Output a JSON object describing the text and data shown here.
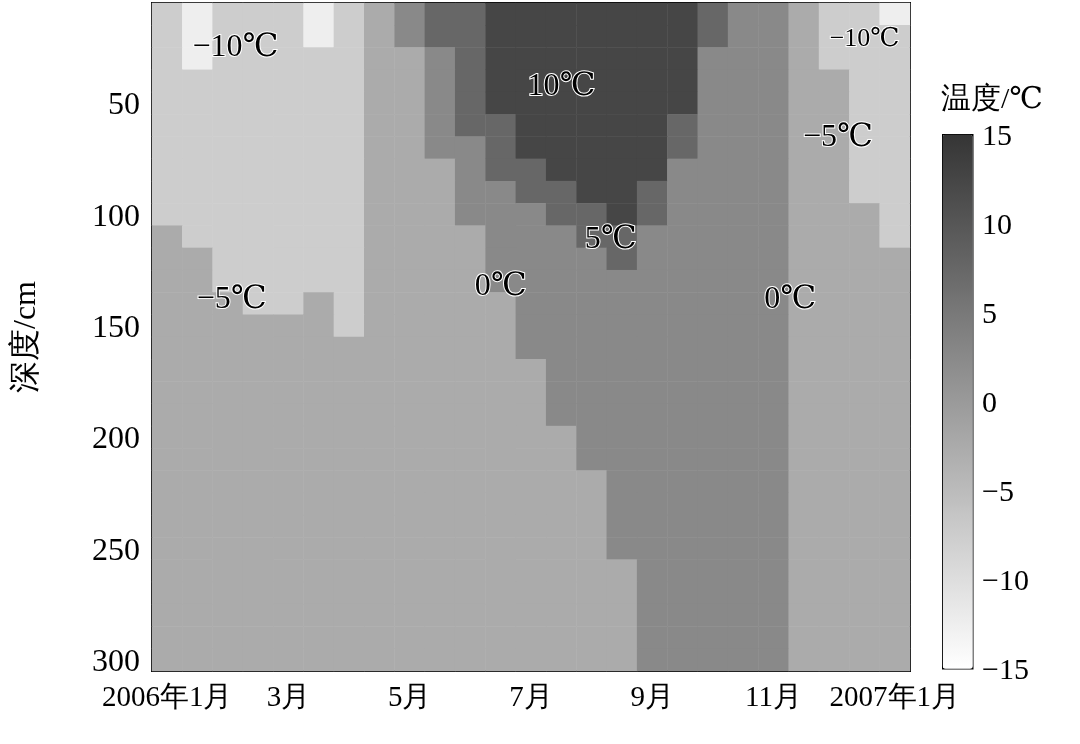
{
  "chart_data": {
    "type": "heatmap",
    "ylabel": "深度/cm",
    "clabel": "温度/℃",
    "categories": [
      "2006年1月",
      null,
      null,
      null,
      "3月",
      null,
      null,
      null,
      "5月",
      null,
      null,
      null,
      "7月",
      null,
      null,
      null,
      "9月",
      null,
      null,
      null,
      "11月",
      null,
      null,
      null,
      "2007年1月"
    ],
    "y_categories": [
      null,
      null,
      null,
      null,
      "50",
      null,
      null,
      null,
      null,
      "100",
      null,
      null,
      null,
      null,
      "150",
      null,
      null,
      null,
      null,
      "200",
      null,
      null,
      null,
      null,
      "250",
      null,
      null,
      null,
      null,
      "300"
    ],
    "clim": [
      -15,
      15
    ],
    "cticks": [
      -15,
      -10,
      -5,
      0,
      5,
      10,
      15
    ],
    "cells": [
      [
        -7.5,
        -12.5,
        -7.5,
        -7.5,
        -7.5,
        -12.5,
        -7.5,
        -2.5,
        2.5,
        7.5,
        7.5,
        12.5,
        12.5,
        12.5,
        12.5,
        12.5,
        12.5,
        12.5,
        7.5,
        2.5,
        2.5,
        -2.5,
        -7.5,
        -7.5,
        -12.5
      ],
      [
        -7.5,
        -12.5,
        -7.5,
        -7.5,
        -7.5,
        -12.5,
        -7.5,
        -2.5,
        2.5,
        7.5,
        7.5,
        12.5,
        12.5,
        12.5,
        12.5,
        12.5,
        12.5,
        12.5,
        7.5,
        2.5,
        2.5,
        -2.5,
        -7.5,
        -7.5,
        -7.5
      ],
      [
        -7.5,
        -12.5,
        -7.5,
        -7.5,
        -7.5,
        -7.5,
        -7.5,
        -2.5,
        -2.5,
        2.5,
        7.5,
        12.5,
        12.5,
        12.5,
        12.5,
        12.5,
        12.5,
        12.5,
        2.5,
        2.5,
        2.5,
        -2.5,
        -7.5,
        -7.5,
        -7.5
      ],
      [
        -7.5,
        -7.5,
        -7.5,
        -7.5,
        -7.5,
        -7.5,
        -7.5,
        -2.5,
        -2.5,
        2.5,
        7.5,
        12.5,
        12.5,
        12.5,
        12.5,
        12.5,
        12.5,
        12.5,
        2.5,
        2.5,
        2.5,
        -2.5,
        -2.5,
        -7.5,
        -7.5
      ],
      [
        -7.5,
        -7.5,
        -7.5,
        -7.5,
        -7.5,
        -7.5,
        -7.5,
        -2.5,
        -2.5,
        2.5,
        7.5,
        12.5,
        12.5,
        12.5,
        12.5,
        12.5,
        12.5,
        12.5,
        2.5,
        2.5,
        2.5,
        -2.5,
        -2.5,
        -7.5,
        -7.5
      ],
      [
        -7.5,
        -7.5,
        -7.5,
        -7.5,
        -7.5,
        -7.5,
        -7.5,
        -2.5,
        -2.5,
        2.5,
        7.5,
        7.5,
        12.5,
        12.5,
        12.5,
        12.5,
        12.5,
        7.5,
        2.5,
        2.5,
        2.5,
        -2.5,
        -2.5,
        -7.5,
        -7.5
      ],
      [
        -7.5,
        -7.5,
        -7.5,
        -7.5,
        -7.5,
        -7.5,
        -7.5,
        -2.5,
        -2.5,
        2.5,
        2.5,
        7.5,
        12.5,
        12.5,
        12.5,
        12.5,
        12.5,
        7.5,
        2.5,
        2.5,
        2.5,
        -2.5,
        -2.5,
        -7.5,
        -7.5
      ],
      [
        -7.5,
        -7.5,
        -7.5,
        -7.5,
        -7.5,
        -7.5,
        -7.5,
        -2.5,
        -2.5,
        -2.5,
        2.5,
        7.5,
        7.5,
        12.5,
        12.5,
        12.5,
        12.5,
        2.5,
        2.5,
        2.5,
        2.5,
        -2.5,
        -2.5,
        -7.5,
        -7.5
      ],
      [
        -7.5,
        -7.5,
        -7.5,
        -7.5,
        -7.5,
        -7.5,
        -7.5,
        -2.5,
        -2.5,
        -2.5,
        2.5,
        2.5,
        7.5,
        7.5,
        12.5,
        12.5,
        7.5,
        2.5,
        2.5,
        2.5,
        2.5,
        -2.5,
        -2.5,
        -7.5,
        -7.5
      ],
      [
        -7.5,
        -7.5,
        -7.5,
        -7.5,
        -7.5,
        -7.5,
        -7.5,
        -2.5,
        -2.5,
        -2.5,
        2.5,
        2.5,
        2.5,
        7.5,
        7.5,
        12.5,
        7.5,
        2.5,
        2.5,
        2.5,
        2.5,
        -2.5,
        -2.5,
        -2.5,
        -7.5
      ],
      [
        -2.5,
        -7.5,
        -7.5,
        -7.5,
        -7.5,
        -7.5,
        -7.5,
        -2.5,
        -2.5,
        -2.5,
        -2.5,
        2.5,
        2.5,
        2.5,
        7.5,
        7.5,
        2.5,
        2.5,
        2.5,
        2.5,
        2.5,
        -2.5,
        -2.5,
        -2.5,
        -7.5
      ],
      [
        -2.5,
        -2.5,
        -7.5,
        -7.5,
        -7.5,
        -7.5,
        -7.5,
        -2.5,
        -2.5,
        -2.5,
        -2.5,
        2.5,
        2.5,
        2.5,
        2.5,
        7.5,
        2.5,
        2.5,
        2.5,
        2.5,
        2.5,
        -2.5,
        -2.5,
        -2.5,
        -2.5
      ],
      [
        -2.5,
        -2.5,
        -7.5,
        -7.5,
        -7.5,
        -7.5,
        -7.5,
        -2.5,
        -2.5,
        -2.5,
        -2.5,
        2.5,
        2.5,
        2.5,
        2.5,
        2.5,
        2.5,
        2.5,
        2.5,
        2.5,
        2.5,
        -2.5,
        -2.5,
        -2.5,
        -2.5
      ],
      [
        -2.5,
        -2.5,
        -2.5,
        -7.5,
        -7.5,
        -2.5,
        -7.5,
        -2.5,
        -2.5,
        -2.5,
        -2.5,
        -2.5,
        2.5,
        2.5,
        2.5,
        2.5,
        2.5,
        2.5,
        2.5,
        2.5,
        2.5,
        -2.5,
        -2.5,
        -2.5,
        -2.5
      ],
      [
        -2.5,
        -2.5,
        -2.5,
        -2.5,
        -2.5,
        -2.5,
        -7.5,
        -2.5,
        -2.5,
        -2.5,
        -2.5,
        -2.5,
        2.5,
        2.5,
        2.5,
        2.5,
        2.5,
        2.5,
        2.5,
        2.5,
        2.5,
        -2.5,
        -2.5,
        -2.5,
        -2.5
      ],
      [
        -2.5,
        -2.5,
        -2.5,
        -2.5,
        -2.5,
        -2.5,
        -2.5,
        -2.5,
        -2.5,
        -2.5,
        -2.5,
        -2.5,
        2.5,
        2.5,
        2.5,
        2.5,
        2.5,
        2.5,
        2.5,
        2.5,
        2.5,
        -2.5,
        -2.5,
        -2.5,
        -2.5
      ],
      [
        -2.5,
        -2.5,
        -2.5,
        -2.5,
        -2.5,
        -2.5,
        -2.5,
        -2.5,
        -2.5,
        -2.5,
        -2.5,
        -2.5,
        -2.5,
        2.5,
        2.5,
        2.5,
        2.5,
        2.5,
        2.5,
        2.5,
        2.5,
        -2.5,
        -2.5,
        -2.5,
        -2.5
      ],
      [
        -2.5,
        -2.5,
        -2.5,
        -2.5,
        -2.5,
        -2.5,
        -2.5,
        -2.5,
        -2.5,
        -2.5,
        -2.5,
        -2.5,
        -2.5,
        2.5,
        2.5,
        2.5,
        2.5,
        2.5,
        2.5,
        2.5,
        2.5,
        -2.5,
        -2.5,
        -2.5,
        -2.5
      ],
      [
        -2.5,
        -2.5,
        -2.5,
        -2.5,
        -2.5,
        -2.5,
        -2.5,
        -2.5,
        -2.5,
        -2.5,
        -2.5,
        -2.5,
        -2.5,
        2.5,
        2.5,
        2.5,
        2.5,
        2.5,
        2.5,
        2.5,
        2.5,
        -2.5,
        -2.5,
        -2.5,
        -2.5
      ],
      [
        -2.5,
        -2.5,
        -2.5,
        -2.5,
        -2.5,
        -2.5,
        -2.5,
        -2.5,
        -2.5,
        -2.5,
        -2.5,
        -2.5,
        -2.5,
        -2.5,
        2.5,
        2.5,
        2.5,
        2.5,
        2.5,
        2.5,
        2.5,
        -2.5,
        -2.5,
        -2.5,
        -2.5
      ],
      [
        -2.5,
        -2.5,
        -2.5,
        -2.5,
        -2.5,
        -2.5,
        -2.5,
        -2.5,
        -2.5,
        -2.5,
        -2.5,
        -2.5,
        -2.5,
        -2.5,
        2.5,
        2.5,
        2.5,
        2.5,
        2.5,
        2.5,
        2.5,
        -2.5,
        -2.5,
        -2.5,
        -2.5
      ],
      [
        -2.5,
        -2.5,
        -2.5,
        -2.5,
        -2.5,
        -2.5,
        -2.5,
        -2.5,
        -2.5,
        -2.5,
        -2.5,
        -2.5,
        -2.5,
        -2.5,
        -2.5,
        2.5,
        2.5,
        2.5,
        2.5,
        2.5,
        2.5,
        -2.5,
        -2.5,
        -2.5,
        -2.5
      ],
      [
        -2.5,
        -2.5,
        -2.5,
        -2.5,
        -2.5,
        -2.5,
        -2.5,
        -2.5,
        -2.5,
        -2.5,
        -2.5,
        -2.5,
        -2.5,
        -2.5,
        -2.5,
        2.5,
        2.5,
        2.5,
        2.5,
        2.5,
        2.5,
        -2.5,
        -2.5,
        -2.5,
        -2.5
      ],
      [
        -2.5,
        -2.5,
        -2.5,
        -2.5,
        -2.5,
        -2.5,
        -2.5,
        -2.5,
        -2.5,
        -2.5,
        -2.5,
        -2.5,
        -2.5,
        -2.5,
        -2.5,
        2.5,
        2.5,
        2.5,
        2.5,
        2.5,
        2.5,
        -2.5,
        -2.5,
        -2.5,
        -2.5
      ],
      [
        -2.5,
        -2.5,
        -2.5,
        -2.5,
        -2.5,
        -2.5,
        -2.5,
        -2.5,
        -2.5,
        -2.5,
        -2.5,
        -2.5,
        -2.5,
        -2.5,
        -2.5,
        2.5,
        2.5,
        2.5,
        2.5,
        2.5,
        2.5,
        -2.5,
        -2.5,
        -2.5,
        -2.5
      ],
      [
        -2.5,
        -2.5,
        -2.5,
        -2.5,
        -2.5,
        -2.5,
        -2.5,
        -2.5,
        -2.5,
        -2.5,
        -2.5,
        -2.5,
        -2.5,
        -2.5,
        -2.5,
        -2.5,
        2.5,
        2.5,
        2.5,
        2.5,
        2.5,
        -2.5,
        -2.5,
        -2.5,
        -2.5
      ],
      [
        -2.5,
        -2.5,
        -2.5,
        -2.5,
        -2.5,
        -2.5,
        -2.5,
        -2.5,
        -2.5,
        -2.5,
        -2.5,
        -2.5,
        -2.5,
        -2.5,
        -2.5,
        -2.5,
        2.5,
        2.5,
        2.5,
        2.5,
        2.5,
        -2.5,
        -2.5,
        -2.5,
        -2.5
      ],
      [
        -2.5,
        -2.5,
        -2.5,
        -2.5,
        -2.5,
        -2.5,
        -2.5,
        -2.5,
        -2.5,
        -2.5,
        -2.5,
        -2.5,
        -2.5,
        -2.5,
        -2.5,
        -2.5,
        2.5,
        2.5,
        2.5,
        2.5,
        2.5,
        -2.5,
        -2.5,
        -2.5,
        -2.5
      ],
      [
        -2.5,
        -2.5,
        -2.5,
        -2.5,
        -2.5,
        -2.5,
        -2.5,
        -2.5,
        -2.5,
        -2.5,
        -2.5,
        -2.5,
        -2.5,
        -2.5,
        -2.5,
        -2.5,
        2.5,
        2.5,
        2.5,
        2.5,
        2.5,
        -2.5,
        -2.5,
        -2.5,
        -2.5
      ],
      [
        -2.5,
        -2.5,
        -2.5,
        -2.5,
        -2.5,
        -2.5,
        -2.5,
        -2.5,
        -2.5,
        -2.5,
        -2.5,
        -2.5,
        -2.5,
        -2.5,
        -2.5,
        -2.5,
        2.5,
        2.5,
        2.5,
        2.5,
        2.5,
        -2.5,
        -2.5,
        -2.5,
        -2.5
      ]
    ],
    "annotations": [
      "−10℃",
      "10℃",
      "−10℃",
      "−5℃",
      "5℃",
      "0℃",
      "−5℃",
      "0℃"
    ]
  }
}
